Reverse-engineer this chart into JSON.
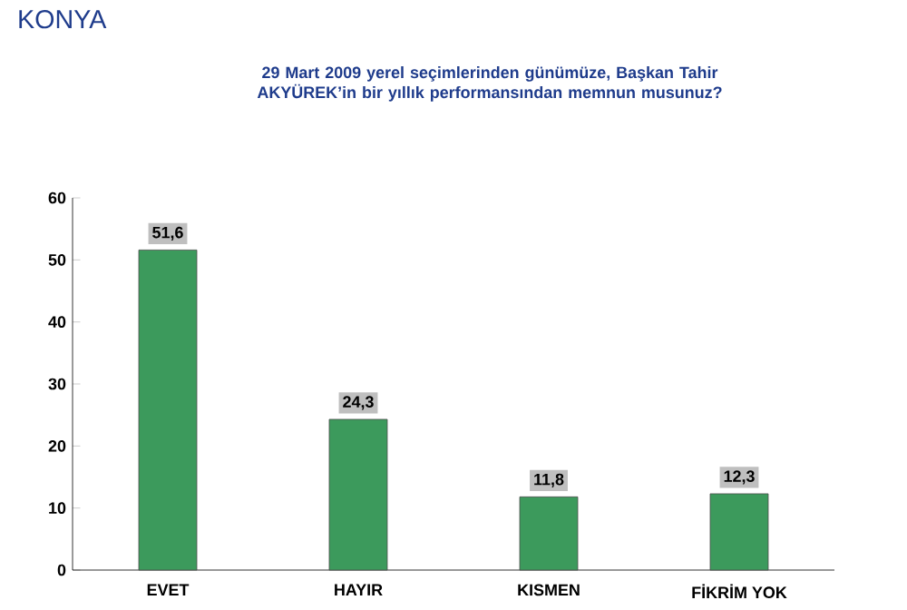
{
  "chart_data": {
    "type": "bar",
    "title": "KONYA",
    "subtitle": "29 Mart 2009 yerel seçimlerinden günümüze, Başkan Tahir AKYÜREK’in bir yıllık performansından memnun musunuz?",
    "categories": [
      "EVET",
      "HAYIR",
      "KISMEN",
      "FİKRİM YOK"
    ],
    "values": [
      51.6,
      24.3,
      11.8,
      12.3
    ],
    "value_labels": [
      "51,6",
      "24,3",
      "11,8",
      "12,3"
    ],
    "color": "#3c9a5c",
    "ylim": [
      0,
      60
    ],
    "yticks": [
      0,
      10,
      20,
      30,
      40,
      50,
      60
    ]
  }
}
